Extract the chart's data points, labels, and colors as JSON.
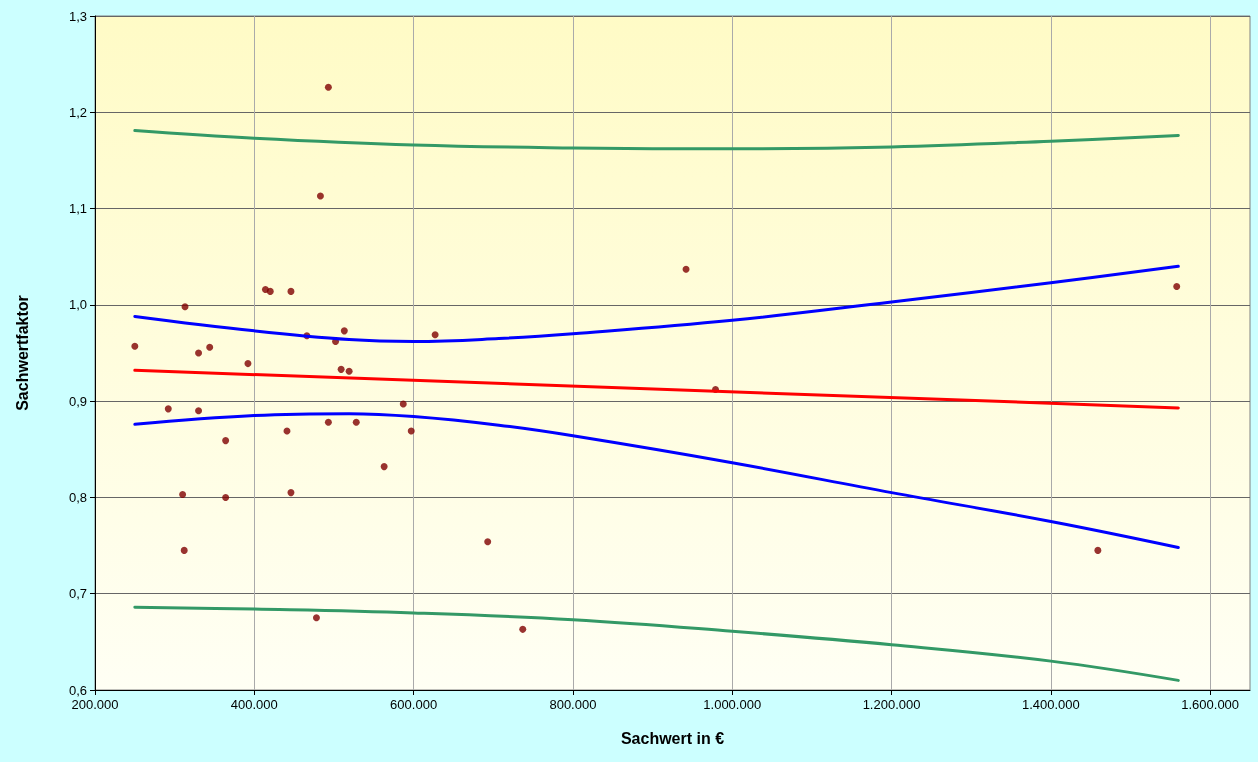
{
  "chart_data": {
    "type": "scatter",
    "xlabel": "Sachwert in €",
    "ylabel": "Sachwertfaktor",
    "grid": true,
    "xlim": [
      200000,
      1650000
    ],
    "xticks": [
      {
        "value": 200000,
        "label": "200.000"
      },
      {
        "value": 400000,
        "label": "400.000"
      },
      {
        "value": 600000,
        "label": "600.000"
      },
      {
        "value": 800000,
        "label": "800.000"
      },
      {
        "value": 1000000,
        "label": "1.000.000"
      },
      {
        "value": 1200000,
        "label": "1.200.000"
      },
      {
        "value": 1400000,
        "label": "1.400.000"
      },
      {
        "value": 1600000,
        "label": "1.600.000"
      }
    ],
    "ylim": [
      0.6,
      1.3
    ],
    "yticks": [
      {
        "value": 0.6,
        "label": "0,6"
      },
      {
        "value": 0.7,
        "label": "0,7"
      },
      {
        "value": 0.8,
        "label": "0,8"
      },
      {
        "value": 0.9,
        "label": "0,9"
      },
      {
        "value": 1.0,
        "label": "1,0"
      },
      {
        "value": 1.1,
        "label": "1,1"
      },
      {
        "value": 1.2,
        "label": "1,2"
      },
      {
        "value": 1.3,
        "label": "1,3"
      }
    ],
    "series": [
      {
        "marker": "circle",
        "color": "#800000",
        "x": [
          250000,
          292000,
          310000,
          313000,
          312000,
          330000,
          330000,
          344000,
          364000,
          364000,
          392000,
          414000,
          420000,
          441000,
          446000,
          446000,
          466000,
          478000,
          483000,
          493000,
          493000,
          502000,
          509000,
          513000,
          519000,
          528000,
          563000,
          587000,
          597000,
          627000,
          693000,
          737000,
          942000,
          979000,
          1459000,
          1558000
        ],
        "values": [
          0.957,
          0.892,
          0.803,
          0.998,
          0.745,
          0.95,
          0.89,
          0.956,
          0.859,
          0.8,
          0.939,
          1.016,
          1.014,
          0.869,
          1.014,
          0.805,
          0.968,
          0.675,
          1.113,
          1.226,
          0.878,
          0.962,
          0.933,
          0.973,
          0.931,
          0.878,
          0.832,
          0.897,
          0.869,
          0.969,
          0.754,
          0.663,
          1.037,
          0.912,
          0.745,
          1.019
        ]
      },
      {
        "type": "line",
        "marker": "none",
        "color": "#ff0000",
        "x": [
          250000,
          1560000
        ],
        "values": [
          0.932,
          0.893
        ]
      },
      {
        "type": "line",
        "marker": "none",
        "color": "#0000ff",
        "x": [
          250000,
          400000,
          519000,
          600000,
          707000,
          800000,
          1000000,
          1200000,
          1400000,
          1560000
        ],
        "values": [
          0.988,
          0.973,
          0.964,
          0.962,
          0.965,
          0.97,
          0.984,
          1.003,
          1.023,
          1.04
        ]
      },
      {
        "type": "line",
        "marker": "none",
        "color": "#0000ff",
        "x": [
          250000,
          400000,
          519000,
          600000,
          707000,
          800000,
          1000000,
          1200000,
          1400000,
          1560000
        ],
        "values": [
          0.876,
          0.885,
          0.887,
          0.884,
          0.875,
          0.864,
          0.836,
          0.805,
          0.775,
          0.748
        ]
      },
      {
        "type": "line",
        "marker": "none",
        "color": "#339966",
        "x": [
          250000,
          400000,
          600000,
          800000,
          1000000,
          1200000,
          1400000,
          1560000
        ],
        "values": [
          1.181,
          1.173,
          1.166,
          1.163,
          1.162,
          1.164,
          1.17,
          1.176
        ]
      },
      {
        "type": "line",
        "marker": "none",
        "color": "#339966",
        "x": [
          250000,
          400000,
          600000,
          800000,
          1000000,
          1200000,
          1400000,
          1560000
        ],
        "values": [
          0.686,
          0.684,
          0.68,
          0.673,
          0.661,
          0.647,
          0.63,
          0.61
        ]
      }
    ]
  }
}
